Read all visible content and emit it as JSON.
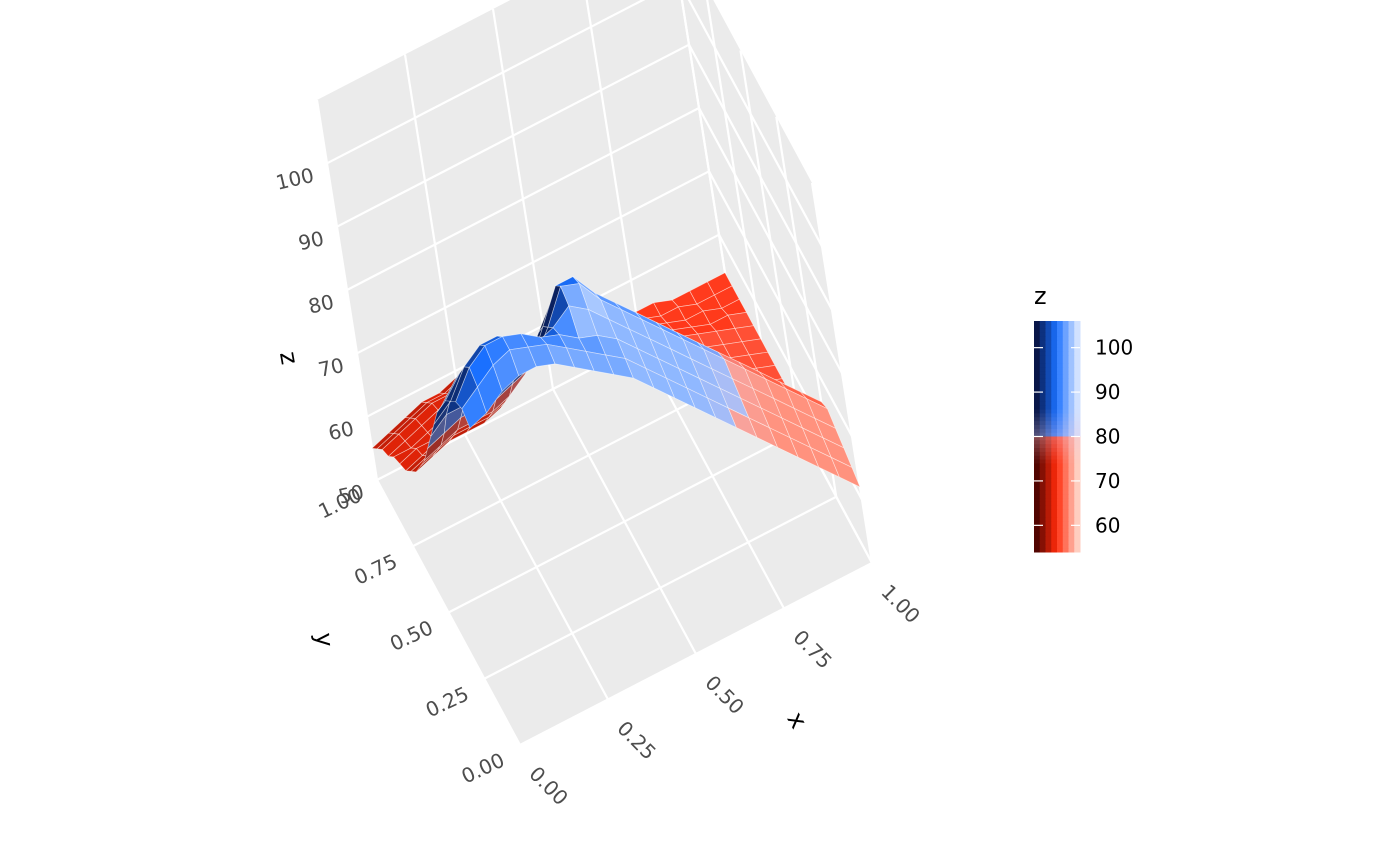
{
  "chart_data": {
    "type": "surface3d",
    "x": [
      0.0,
      0.05,
      0.1,
      0.15,
      0.2,
      0.25,
      0.3,
      0.35,
      0.4,
      0.45,
      0.5,
      0.55,
      0.6,
      0.65,
      0.7,
      0.75,
      0.8,
      0.85,
      0.9,
      0.95,
      1.0
    ],
    "y": [
      0.0,
      0.05,
      0.1,
      0.15,
      0.2,
      0.25,
      0.3,
      0.35,
      0.4,
      0.45,
      0.5,
      0.55,
      0.6,
      0.65,
      0.7,
      0.75,
      0.8,
      0.85,
      0.9,
      0.95,
      1.0
    ],
    "z": [
      [
        100,
        101,
        103,
        104,
        104,
        103,
        101,
        99,
        97,
        95,
        92,
        89,
        86,
        83,
        80,
        77,
        74,
        71,
        68,
        65,
        62
      ],
      [
        101,
        103,
        105,
        106,
        105,
        104,
        102,
        100,
        98,
        96,
        93,
        90,
        87,
        84,
        81,
        78,
        75,
        72,
        69,
        66,
        63
      ],
      [
        100,
        104,
        106,
        106,
        105,
        103,
        102,
        100,
        99,
        97,
        94,
        91,
        88,
        85,
        82,
        79,
        76,
        73,
        70,
        67,
        64
      ],
      [
        98,
        102,
        104,
        104,
        102,
        100,
        101,
        103,
        101,
        98,
        95,
        92,
        89,
        86,
        83,
        80,
        77,
        74,
        71,
        68,
        65
      ],
      [
        96,
        99,
        101,
        100,
        97,
        95,
        99,
        104,
        103,
        99,
        96,
        93,
        90,
        87,
        84,
        81,
        78,
        75,
        72,
        69,
        66
      ],
      [
        93,
        96,
        97,
        96,
        93,
        92,
        97,
        102,
        102,
        98,
        95,
        92,
        89,
        86,
        83,
        80,
        77,
        74,
        71,
        68,
        65
      ],
      [
        90,
        92,
        93,
        92,
        90,
        90,
        94,
        98,
        98,
        95,
        92,
        89,
        86,
        83,
        80,
        77,
        74,
        71,
        68,
        65,
        62
      ],
      [
        86,
        88,
        89,
        88,
        87,
        88,
        90,
        93,
        93,
        91,
        88,
        85,
        82,
        79,
        76,
        73,
        70,
        67,
        64,
        61,
        58
      ],
      [
        82,
        84,
        84,
        84,
        84,
        85,
        87,
        88,
        88,
        87,
        84,
        81,
        78,
        75,
        72,
        69,
        66,
        63,
        60,
        57,
        55
      ],
      [
        78,
        79,
        80,
        80,
        80,
        81,
        82,
        83,
        83,
        82,
        80,
        77,
        74,
        71,
        68,
        65,
        62,
        59,
        57,
        55,
        54
      ],
      [
        74,
        75,
        76,
        76,
        76,
        77,
        79,
        81,
        82,
        80,
        77,
        74,
        71,
        68,
        65,
        62,
        60,
        58,
        56,
        55,
        54
      ],
      [
        71,
        72,
        73,
        73,
        73,
        74,
        77,
        80,
        81,
        79,
        75,
        72,
        69,
        66,
        63,
        61,
        59,
        57,
        56,
        55,
        54
      ],
      [
        68,
        69,
        70,
        70,
        70,
        71,
        74,
        77,
        77,
        75,
        72,
        69,
        66,
        64,
        62,
        60,
        58,
        57,
        56,
        55,
        54
      ],
      [
        66,
        67,
        68,
        68,
        68,
        69,
        71,
        73,
        73,
        71,
        69,
        67,
        65,
        63,
        61,
        59,
        58,
        57,
        56,
        55,
        54
      ],
      [
        64,
        65,
        66,
        66,
        67,
        68,
        69,
        70,
        70,
        69,
        67,
        65,
        63,
        62,
        60,
        59,
        58,
        57,
        56,
        55,
        54
      ],
      [
        63,
        64,
        64,
        65,
        66,
        67,
        68,
        68,
        68,
        67,
        65,
        64,
        62,
        61,
        60,
        59,
        58,
        57,
        56,
        55,
        54
      ],
      [
        62,
        62,
        63,
        64,
        65,
        66,
        67,
        67,
        66,
        65,
        64,
        63,
        62,
        61,
        60,
        59,
        58,
        57,
        56,
        55,
        54
      ],
      [
        60,
        61,
        62,
        63,
        64,
        65,
        65,
        65,
        64,
        63,
        62,
        62,
        61,
        60,
        59,
        58,
        57,
        56,
        55,
        55,
        54
      ],
      [
        59,
        60,
        61,
        62,
        62,
        63,
        63,
        63,
        62,
        61,
        61,
        60,
        60,
        59,
        58,
        57,
        56,
        55,
        55,
        54,
        54
      ],
      [
        57,
        58,
        59,
        60,
        60,
        61,
        61,
        61,
        60,
        60,
        59,
        59,
        58,
        58,
        57,
        56,
        55,
        55,
        54,
        54,
        54
      ],
      [
        55,
        56,
        57,
        58,
        58,
        59,
        59,
        59,
        59,
        58,
        58,
        57,
        57,
        56,
        56,
        55,
        55,
        54,
        54,
        54,
        54
      ]
    ],
    "zlim": [
      50,
      110
    ],
    "xlim": [
      0,
      1
    ],
    "ylim": [
      0,
      1
    ],
    "axes": {
      "x": {
        "title": "x",
        "ticks": [
          "0.00",
          "0.25",
          "0.50",
          "0.75",
          "1.00"
        ],
        "tick_values": [
          0,
          0.25,
          0.5,
          0.75,
          1.0
        ]
      },
      "y": {
        "title": "y",
        "ticks": [
          "0.00",
          "0.25",
          "0.50",
          "0.75",
          "1.00"
        ],
        "tick_values": [
          0,
          0.25,
          0.5,
          0.75,
          1.0
        ]
      },
      "z": {
        "title": "z",
        "ticks": [
          "50",
          "60",
          "70",
          "80",
          "90",
          "100"
        ],
        "tick_values": [
          50,
          60,
          70,
          80,
          90,
          100
        ]
      }
    },
    "legend": {
      "title": "z",
      "placement": "right",
      "labels": [
        "100",
        "90",
        "80",
        "70",
        "60"
      ],
      "label_values": [
        100,
        90,
        80,
        70,
        60
      ],
      "range": [
        54,
        106
      ]
    },
    "grid": true,
    "colors": {
      "panel": "#ebebeb",
      "grid": "#ffffff",
      "low_dark": "#3a0000",
      "low_bright": "#ff2a0a",
      "low_light": "#ffd8cc",
      "high_dark": "#050a30",
      "high_bright": "#1a70ff",
      "high_light": "#dde8ff",
      "mid": "#e8c8e0"
    }
  }
}
